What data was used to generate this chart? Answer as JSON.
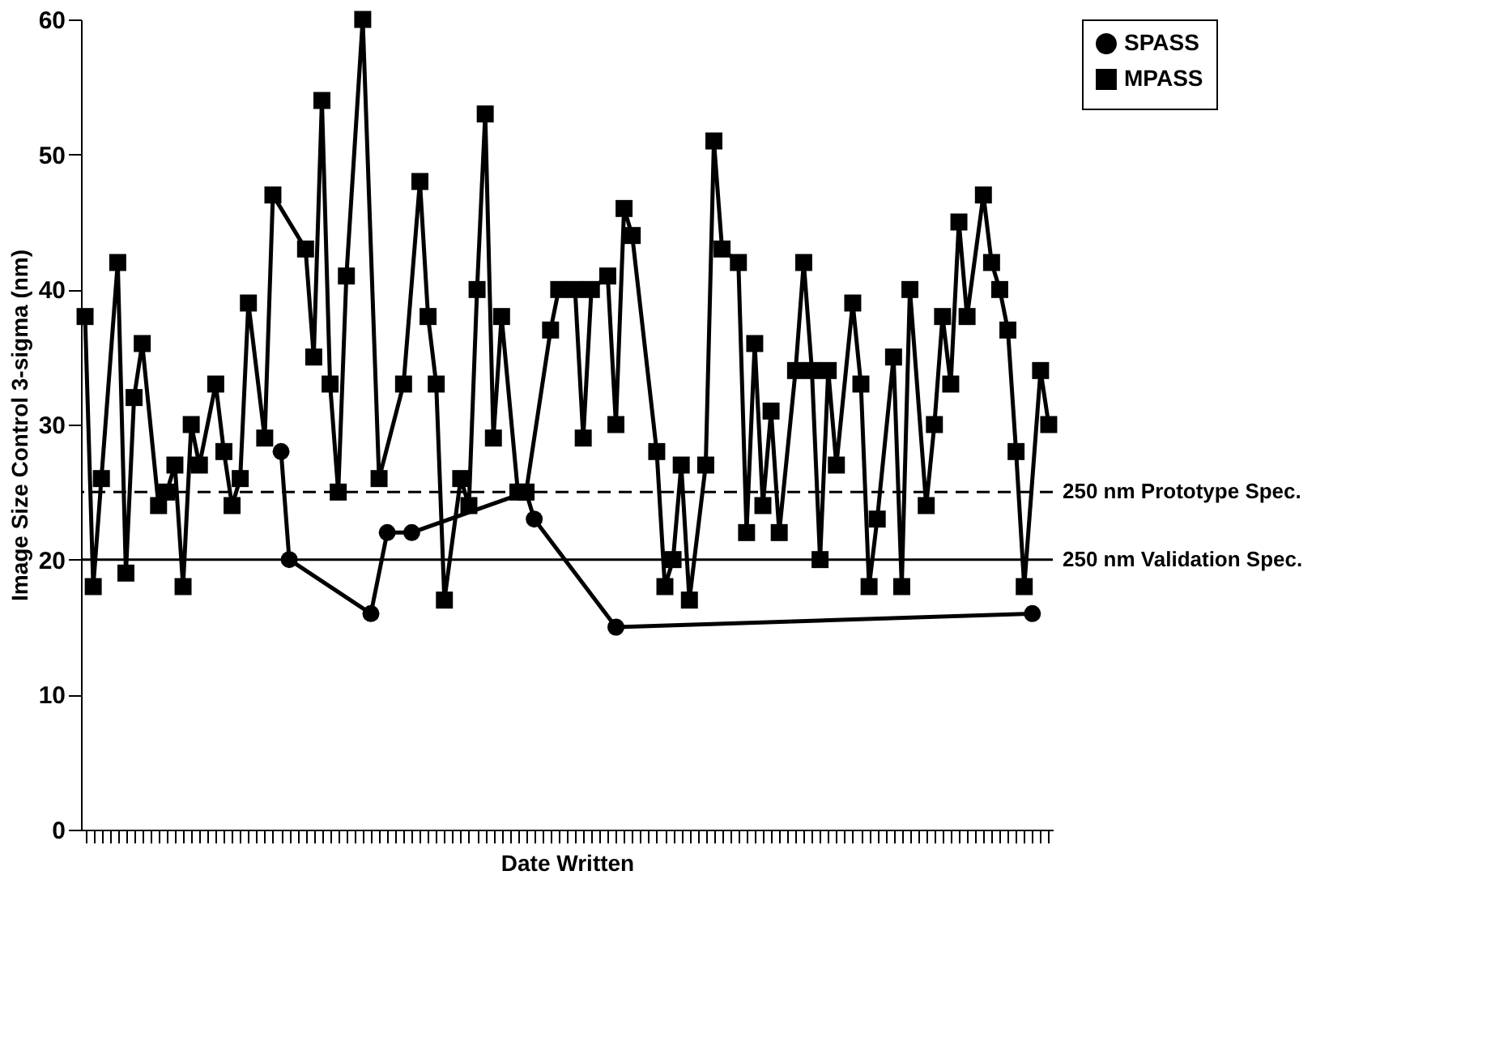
{
  "chart_data": {
    "type": "line",
    "xlabel": "Date Written",
    "ylabel": "Image Size Control 3-sigma (nm)",
    "categories": [
      null,
      null,
      null,
      null,
      null,
      null,
      null,
      null,
      null,
      null,
      null,
      null,
      null,
      null,
      null,
      null,
      null,
      null,
      null,
      null,
      null,
      null,
      null,
      null,
      null,
      null,
      null,
      null,
      null,
      null,
      null,
      null,
      null,
      null,
      null,
      null,
      null,
      null,
      null,
      null,
      null,
      null,
      null,
      null,
      null,
      null,
      null,
      null,
      null,
      null,
      null,
      null,
      null,
      null,
      null,
      null,
      null,
      null,
      null,
      null,
      null,
      null,
      null,
      null,
      null,
      null,
      null,
      null,
      null,
      null,
      null,
      null,
      null,
      null,
      null,
      null,
      null,
      null,
      null,
      null,
      null,
      null,
      null,
      null,
      null,
      null,
      null,
      null,
      null,
      null,
      null,
      null,
      null,
      null,
      null,
      null,
      null,
      null,
      null,
      null,
      null,
      null,
      null,
      null,
      null,
      null,
      null,
      null,
      null,
      null,
      null,
      null,
      null,
      null,
      null,
      null,
      null,
      null,
      null
    ],
    "series": [
      {
        "name": "SPASS",
        "color": "#000000",
        "marker": "circle",
        "values": [
          null,
          null,
          null,
          null,
          null,
          null,
          null,
          null,
          null,
          null,
          null,
          null,
          null,
          null,
          null,
          null,
          null,
          null,
          null,
          null,
          null,
          null,
          null,
          null,
          28,
          20,
          null,
          null,
          null,
          null,
          null,
          null,
          null,
          null,
          null,
          16,
          null,
          22,
          null,
          null,
          22,
          null,
          null,
          null,
          null,
          null,
          null,
          null,
          null,
          null,
          null,
          null,
          null,
          null,
          25,
          23,
          null,
          null,
          null,
          null,
          null,
          null,
          null,
          null,
          null,
          15,
          null,
          null,
          null,
          null,
          null,
          null,
          null,
          null,
          null,
          null,
          null,
          null,
          null,
          null,
          null,
          null,
          null,
          null,
          null,
          null,
          null,
          null,
          null,
          null,
          null,
          null,
          null,
          null,
          null,
          null,
          null,
          null,
          null,
          null,
          null,
          null,
          null,
          null,
          null,
          null,
          null,
          null,
          null,
          null,
          null,
          null,
          null,
          null,
          null,
          null,
          16,
          null,
          null
        ]
      },
      {
        "name": "MPASS",
        "color": "#000000",
        "marker": "square",
        "values": [
          38,
          18,
          26,
          null,
          42,
          19,
          32,
          36,
          null,
          24,
          25,
          27,
          18,
          30,
          27,
          null,
          33,
          28,
          24,
          26,
          39,
          null,
          29,
          47,
          null,
          null,
          null,
          43,
          35,
          54,
          33,
          25,
          41,
          null,
          60,
          null,
          26,
          null,
          null,
          33,
          null,
          48,
          38,
          33,
          17,
          null,
          26,
          24,
          40,
          53,
          29,
          38,
          null,
          25,
          25,
          null,
          null,
          37,
          40,
          null,
          40,
          29,
          40,
          null,
          41,
          30,
          46,
          44,
          null,
          null,
          28,
          18,
          20,
          27,
          17,
          null,
          27,
          51,
          43,
          null,
          42,
          22,
          36,
          24,
          31,
          22,
          null,
          34,
          42,
          34,
          20,
          34,
          27,
          null,
          39,
          33,
          18,
          23,
          null,
          35,
          18,
          40,
          null,
          24,
          30,
          38,
          33,
          45,
          38,
          null,
          47,
          42,
          40,
          37,
          28,
          18,
          null,
          34,
          30
        ]
      }
    ],
    "ylim": [
      0,
      60
    ],
    "yticks": [
      0,
      10,
      20,
      30,
      40,
      50,
      60
    ],
    "grid": false,
    "legend": "top right",
    "line_style": "solid",
    "ref_lines": [
      {
        "axis": "y",
        "value": 25,
        "label": "250 nm Prototype Spec.",
        "line_style": "dashed"
      },
      {
        "axis": "y",
        "value": 20,
        "label": "250 nm Validation Spec.",
        "line_style": "solid"
      }
    ]
  }
}
